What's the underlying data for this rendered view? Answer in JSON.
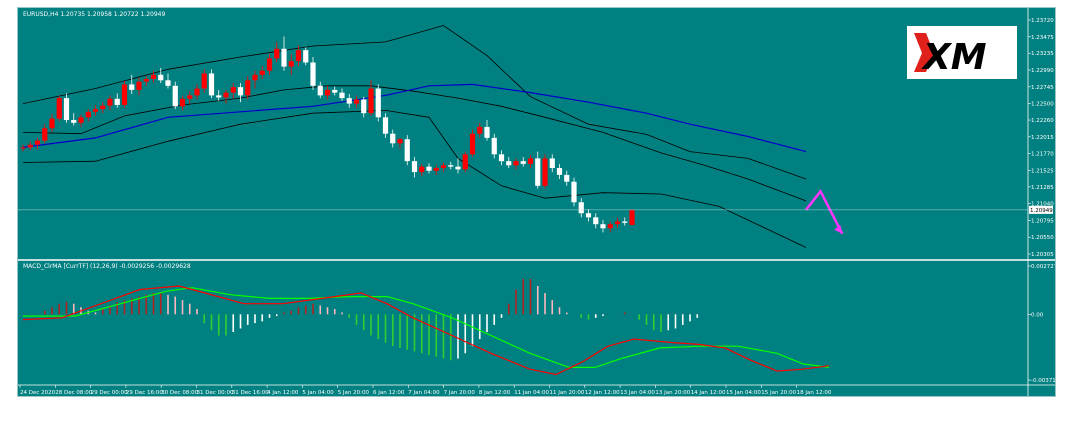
{
  "chart_data": [
    {
      "type": "candlestick",
      "title": "EURUSD,H4  1.20735 1.20958 1.20722 1.20949",
      "symbol": "EURUSD,H4",
      "ohlc_header": "1.20735 1.20958 1.20722 1.20949",
      "last_price": 1.20949,
      "last_price_label": "1.20949",
      "ylim": [
        1.20305,
        1.2372
      ],
      "y_ticks": [
        "1.23720",
        "1.23475",
        "1.23235",
        "1.22990",
        "1.22745",
        "1.22500",
        "1.22260",
        "1.22015",
        "1.21770",
        "1.21525",
        "1.21285",
        "1.21040",
        "1.20795",
        "1.20550",
        "1.20305"
      ],
      "x_ticks": [
        "24 Dec 2020",
        "28 Dec 08:00",
        "29 Dec 00:00",
        "29 Dec 16:00",
        "30 Dec 08:00",
        "31 Dec 00:00",
        "31 Dec 16:00",
        "4 Jan 12:00",
        "5 Jan 04:00",
        "5 Jan 20:00",
        "6 Jan 12:00",
        "7 Jan 04:00",
        "7 Jan 20:00",
        "8 Jan 12:00",
        "11 Jan 04:00",
        "11 Jan 20:00",
        "12 Jan 12:00",
        "13 Jan 04:00",
        "13 Jan 20:00",
        "14 Jan 12:00",
        "15 Jan 04:00",
        "15 Jan 20:00",
        "18 Jan 12:00"
      ],
      "candles": [
        [
          1.2185,
          1.219,
          1.218,
          1.2186
        ],
        [
          1.2186,
          1.2195,
          1.2182,
          1.219
        ],
        [
          1.219,
          1.22,
          1.2183,
          1.2196
        ],
        [
          1.2196,
          1.222,
          1.2192,
          1.2214
        ],
        [
          1.2214,
          1.2235,
          1.2208,
          1.2228
        ],
        [
          1.2228,
          1.2262,
          1.2224,
          1.2258
        ],
        [
          1.2258,
          1.2265,
          1.2222,
          1.2226
        ],
        [
          1.2226,
          1.2236,
          1.2218,
          1.2222
        ],
        [
          1.2222,
          1.2234,
          1.2216,
          1.223
        ],
        [
          1.223,
          1.2242,
          1.2224,
          1.2238
        ],
        [
          1.2238,
          1.2248,
          1.2232,
          1.2242
        ],
        [
          1.2242,
          1.2252,
          1.2236,
          1.2247
        ],
        [
          1.2247,
          1.2262,
          1.224,
          1.2257
        ],
        [
          1.2257,
          1.2265,
          1.2244,
          1.2248
        ],
        [
          1.2248,
          1.2283,
          1.2244,
          1.2278
        ],
        [
          1.2278,
          1.2292,
          1.2264,
          1.227
        ],
        [
          1.227,
          1.2288,
          1.2262,
          1.2282
        ],
        [
          1.2282,
          1.229,
          1.2276,
          1.2286
        ],
        [
          1.2286,
          1.2298,
          1.228,
          1.2292
        ],
        [
          1.2292,
          1.2302,
          1.228,
          1.2284
        ],
        [
          1.2284,
          1.2294,
          1.2272,
          1.2276
        ],
        [
          1.2276,
          1.2282,
          1.2242,
          1.2246
        ],
        [
          1.2246,
          1.2262,
          1.224,
          1.2257
        ],
        [
          1.2257,
          1.2268,
          1.225,
          1.2262
        ],
        [
          1.2262,
          1.2278,
          1.2256,
          1.2272
        ],
        [
          1.2272,
          1.23,
          1.2266,
          1.2294
        ],
        [
          1.2294,
          1.23,
          1.2258,
          1.2262
        ],
        [
          1.2262,
          1.227,
          1.2254,
          1.2259
        ],
        [
          1.2259,
          1.227,
          1.225,
          1.2266
        ],
        [
          1.2266,
          1.228,
          1.2258,
          1.2274
        ],
        [
          1.2274,
          1.228,
          1.2252,
          1.2262
        ],
        [
          1.2262,
          1.229,
          1.2256,
          1.2284
        ],
        [
          1.2284,
          1.2298,
          1.2272,
          1.2292
        ],
        [
          1.2292,
          1.2305,
          1.2286,
          1.2298
        ],
        [
          1.2298,
          1.2322,
          1.2292,
          1.2316
        ],
        [
          1.2316,
          1.234,
          1.231,
          1.233
        ],
        [
          1.233,
          1.2348,
          1.2298,
          1.2304
        ],
        [
          1.2304,
          1.2322,
          1.2292,
          1.2312
        ],
        [
          1.2312,
          1.2335,
          1.2305,
          1.2328
        ],
        [
          1.2328,
          1.2332,
          1.2306,
          1.231
        ],
        [
          1.231,
          1.2318,
          1.227,
          1.2276
        ],
        [
          1.2276,
          1.2282,
          1.2258,
          1.2262
        ],
        [
          1.2262,
          1.2276,
          1.2256,
          1.227
        ],
        [
          1.227,
          1.2275,
          1.2262,
          1.2266
        ],
        [
          1.2266,
          1.2272,
          1.2254,
          1.2258
        ],
        [
          1.2258,
          1.2264,
          1.2244,
          1.225
        ],
        [
          1.225,
          1.2262,
          1.2244,
          1.2256
        ],
        [
          1.2256,
          1.226,
          1.223,
          1.2236
        ],
        [
          1.2236,
          1.2284,
          1.2232,
          1.2272
        ],
        [
          1.2272,
          1.2278,
          1.2224,
          1.223
        ],
        [
          1.223,
          1.2236,
          1.22,
          1.2206
        ],
        [
          1.2206,
          1.2212,
          1.2186,
          1.2192
        ],
        [
          1.2192,
          1.22,
          1.2184,
          1.2198
        ],
        [
          1.2198,
          1.2204,
          1.216,
          1.2166
        ],
        [
          1.2166,
          1.2172,
          1.2142,
          1.215
        ],
        [
          1.215,
          1.2162,
          1.2144,
          1.2158
        ],
        [
          1.2158,
          1.2163,
          1.2148,
          1.2152
        ],
        [
          1.2152,
          1.216,
          1.2146,
          1.2156
        ],
        [
          1.2156,
          1.2164,
          1.215,
          1.216
        ],
        [
          1.216,
          1.2165,
          1.2154,
          1.2158
        ],
        [
          1.2158,
          1.217,
          1.2148,
          1.2154
        ],
        [
          1.2154,
          1.218,
          1.215,
          1.2176
        ],
        [
          1.2176,
          1.2212,
          1.2172,
          1.2206
        ],
        [
          1.2206,
          1.2222,
          1.22,
          1.2216
        ],
        [
          1.2216,
          1.2226,
          1.2196,
          1.22
        ],
        [
          1.22,
          1.2206,
          1.217,
          1.2176
        ],
        [
          1.2176,
          1.2182,
          1.216,
          1.2166
        ],
        [
          1.2166,
          1.2172,
          1.2156,
          1.216
        ],
        [
          1.216,
          1.217,
          1.2154,
          1.2166
        ],
        [
          1.2166,
          1.2172,
          1.2158,
          1.2162
        ],
        [
          1.2162,
          1.2175,
          1.2156,
          1.217
        ],
        [
          1.217,
          1.218,
          1.2126,
          1.213
        ],
        [
          1.213,
          1.2176,
          1.2126,
          1.217
        ],
        [
          1.217,
          1.2176,
          1.215,
          1.2156
        ],
        [
          1.2156,
          1.2162,
          1.214,
          1.2146
        ],
        [
          1.2146,
          1.2152,
          1.213,
          1.2136
        ],
        [
          1.2136,
          1.2142,
          1.21,
          1.2106
        ],
        [
          1.2106,
          1.2112,
          1.2084,
          1.209
        ],
        [
          1.209,
          1.2096,
          1.2078,
          1.2084
        ],
        [
          1.2084,
          1.209,
          1.2068,
          1.2074
        ],
        [
          1.2074,
          1.208,
          1.2062,
          1.2068
        ],
        [
          1.2068,
          1.2078,
          1.2062,
          1.2074
        ],
        [
          1.2074,
          1.2084,
          1.2068,
          1.2078
        ],
        [
          1.2078,
          1.2084,
          1.2072,
          1.2076
        ],
        [
          1.2073,
          1.2096,
          1.2072,
          1.2095
        ]
      ],
      "bollinger_upper": [
        [
          0,
          1.225
        ],
        [
          10,
          1.2272
        ],
        [
          20,
          1.23
        ],
        [
          30,
          1.2318
        ],
        [
          40,
          1.2334
        ],
        [
          50,
          1.234
        ],
        [
          58,
          1.2364
        ],
        [
          64,
          1.232
        ],
        [
          70,
          1.226
        ],
        [
          78,
          1.222
        ],
        [
          86,
          1.2205
        ],
        [
          92,
          1.218
        ],
        [
          100,
          1.217
        ],
        [
          108,
          1.214
        ]
      ],
      "bollinger_lower": [
        [
          0,
          1.2164
        ],
        [
          10,
          1.2166
        ],
        [
          20,
          1.2195
        ],
        [
          30,
          1.222
        ],
        [
          40,
          1.2236
        ],
        [
          50,
          1.224
        ],
        [
          56,
          1.223
        ],
        [
          60,
          1.217
        ],
        [
          66,
          1.213
        ],
        [
          72,
          1.2112
        ],
        [
          80,
          1.212
        ],
        [
          88,
          1.2118
        ],
        [
          96,
          1.21
        ],
        [
          102,
          1.207
        ],
        [
          108,
          1.204
        ]
      ],
      "bollinger_middle": [
        [
          0,
          1.2208
        ],
        [
          8,
          1.2206
        ],
        [
          14,
          1.2232
        ],
        [
          22,
          1.2248
        ],
        [
          30,
          1.2258
        ],
        [
          36,
          1.227
        ],
        [
          42,
          1.2276
        ],
        [
          48,
          1.2276
        ],
        [
          54,
          1.2268
        ],
        [
          60,
          1.2258
        ],
        [
          66,
          1.2246
        ],
        [
          72,
          1.223
        ],
        [
          80,
          1.2208
        ],
        [
          88,
          1.2178
        ],
        [
          94,
          1.216
        ],
        [
          100,
          1.214
        ],
        [
          108,
          1.2108
        ]
      ],
      "ma_blue": [
        [
          0,
          1.2186
        ],
        [
          10,
          1.22
        ],
        [
          20,
          1.223
        ],
        [
          30,
          1.2238
        ],
        [
          40,
          1.2246
        ],
        [
          50,
          1.2262
        ],
        [
          56,
          1.2276
        ],
        [
          62,
          1.2278
        ],
        [
          70,
          1.2266
        ],
        [
          78,
          1.2252
        ],
        [
          86,
          1.2236
        ],
        [
          92,
          1.222
        ],
        [
          100,
          1.2202
        ],
        [
          108,
          1.218
        ]
      ],
      "forecast_arrow": [
        [
          108,
          1.2095
        ],
        [
          110,
          1.2122
        ],
        [
          113,
          1.206
        ]
      ]
    },
    {
      "type": "macd",
      "title": "MACD_ClrMA [CurrTF] (12,26,9) -0.0029256 -0.0029628",
      "ylim": [
        -0.00371,
        0.002727
      ],
      "y_ticks": [
        "0.0027270",
        "0.00",
        "-0.0037100"
      ],
      "histogram": [
        0.0002,
        0.0004,
        0.0006,
        0.0007,
        0.0006,
        0.0004,
        0.0002,
        0.0001,
        0.0003,
        0.0005,
        0.0007,
        0.0008,
        0.0009,
        0.001,
        0.0011,
        0.0012,
        0.0012,
        0.0011,
        0.001,
        0.0008,
        0.0006,
        0.0003,
        -0.0005,
        -0.0009,
        -0.0012,
        -0.0012,
        -0.001,
        -0.0008,
        -0.0006,
        -0.0005,
        -0.0004,
        -0.0002,
        -0.0001,
        0.0001,
        0.0002,
        0.0004,
        0.0005,
        0.0006,
        0.0005,
        0.0004,
        0.0003,
        0.0001,
        -0.0002,
        -0.0006,
        -0.0009,
        -0.0012,
        -0.0014,
        -0.0016,
        -0.0018,
        -0.0019,
        -0.002,
        -0.0021,
        -0.0022,
        -0.0023,
        -0.0024,
        -0.0025,
        -0.0026,
        -0.0025,
        -0.0022,
        -0.0018,
        -0.0014,
        -0.001,
        -0.0006,
        -0.0002,
        0.0006,
        0.0014,
        0.002,
        0.002,
        0.0016,
        0.0012,
        0.0008,
        0.0004,
        0.0001,
        0.0,
        -0.0002,
        -0.0003,
        -0.0002,
        -0.0001,
        0.0,
        0.0,
        0.0001,
        0.0,
        -0.0003,
        -0.0006,
        -0.0009,
        -0.001,
        -0.0009,
        -0.0008,
        -0.0006,
        -0.0004,
        -0.0002
      ],
      "macd_line": [
        [
          0,
          -0.0003
        ],
        [
          6,
          -0.0002
        ],
        [
          12,
          0.0006
        ],
        [
          18,
          0.0014
        ],
        [
          24,
          0.0016
        ],
        [
          28,
          0.0012
        ],
        [
          34,
          0.0006
        ],
        [
          40,
          0.0006
        ],
        [
          46,
          0.0009
        ],
        [
          52,
          0.0012
        ],
        [
          56,
          0.0006
        ],
        [
          60,
          -0.0002
        ],
        [
          66,
          -0.0012
        ],
        [
          72,
          -0.0022
        ],
        [
          78,
          -0.0031
        ],
        [
          82,
          -0.0034
        ],
        [
          86,
          -0.0027
        ],
        [
          90,
          -0.0018
        ],
        [
          94,
          -0.0014
        ],
        [
          100,
          -0.0016
        ],
        [
          104,
          -0.0017
        ],
        [
          108,
          -0.0019
        ],
        [
          112,
          -0.0026
        ],
        [
          116,
          -0.0032
        ],
        [
          120,
          -0.0031
        ],
        [
          124,
          -0.0029
        ]
      ],
      "signal_line": [
        [
          0,
          -0.0001
        ],
        [
          8,
          -0.0001
        ],
        [
          16,
          0.0007
        ],
        [
          22,
          0.0013
        ],
        [
          26,
          0.0015
        ],
        [
          32,
          0.0011
        ],
        [
          38,
          0.0009
        ],
        [
          44,
          0.0009
        ],
        [
          50,
          0.001
        ],
        [
          56,
          0.001
        ],
        [
          60,
          0.0006
        ],
        [
          66,
          -0.0002
        ],
        [
          72,
          -0.0012
        ],
        [
          78,
          -0.0022
        ],
        [
          84,
          -0.003
        ],
        [
          88,
          -0.003
        ],
        [
          92,
          -0.0025
        ],
        [
          98,
          -0.0019
        ],
        [
          104,
          -0.0018
        ],
        [
          110,
          -0.0018
        ],
        [
          116,
          -0.0022
        ],
        [
          120,
          -0.0028
        ],
        [
          124,
          -0.003
        ]
      ]
    }
  ],
  "logo": {
    "text": "XM"
  },
  "colors": {
    "background": "#008080",
    "bull": "#ff0000",
    "bear": "#ffffff",
    "bands": "#000000",
    "ma": "#0000cc",
    "arrow": "#ff33ff",
    "macd": "#ff0000",
    "signal": "#00ff00",
    "hist_pos_up": "#b22222",
    "hist_pos_down": "#ffb6c1",
    "hist_neg_down": "#32cd32",
    "hist_neg_up": "#ffffff"
  }
}
